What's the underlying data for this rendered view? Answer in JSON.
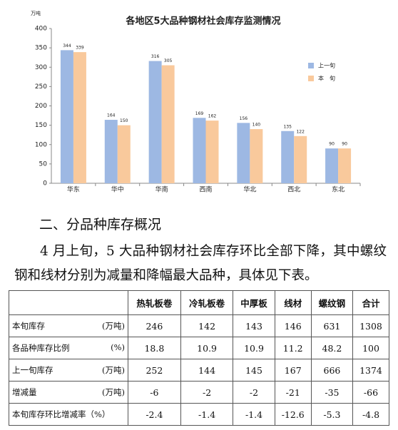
{
  "chart_data": {
    "type": "bar",
    "title": "各地区5大品种钢材社会库存监测情况",
    "y_unit": "万吨",
    "categories": [
      "华东",
      "华中",
      "华南",
      "西南",
      "华北",
      "西北",
      "东北"
    ],
    "series": [
      {
        "name": "上一旬",
        "color": "#9db8e3",
        "values": [
          344,
          164,
          316,
          169,
          156,
          135,
          90
        ]
      },
      {
        "name": "本　旬",
        "color": "#f9c99c",
        "values": [
          339,
          150,
          305,
          162,
          140,
          122,
          90
        ]
      }
    ],
    "ylim": [
      0,
      400
    ],
    "yticks": [
      0,
      50,
      100,
      150,
      200,
      250,
      300,
      350,
      400
    ],
    "grid": false,
    "legend": "right"
  },
  "section": {
    "title": "二、分品种库存概况",
    "paragraph": "4 月上旬，5 大品种钢材社会库存环比全部下降，其中螺纹钢和线材分别为减量和降幅最大品种，具体见下表。"
  },
  "table": {
    "header": [
      "热轧板卷",
      "冷轧板卷",
      "中厚板",
      "线材",
      "螺纹钢",
      "合计"
    ],
    "rows": [
      {
        "label": "本旬库存",
        "unit": "(万吨)",
        "values": [
          246,
          142,
          143,
          146,
          631,
          1308
        ]
      },
      {
        "label": "各品种库存比例",
        "unit": "(%)",
        "values": [
          18.8,
          10.9,
          10.9,
          11.2,
          48.2,
          100
        ]
      },
      {
        "label": "上一旬库存",
        "unit": "(万吨)",
        "values": [
          252,
          144,
          145,
          167,
          666,
          1374
        ]
      },
      {
        "label": "增减量",
        "unit": "(万吨)",
        "values": [
          -6,
          -2,
          -2,
          -21,
          -35,
          -66
        ]
      },
      {
        "label": "本旬库存环比增减率（%）",
        "values": [
          -2.4,
          -1.4,
          -1.4,
          -12.6,
          -5.3,
          -4.8
        ]
      }
    ]
  }
}
